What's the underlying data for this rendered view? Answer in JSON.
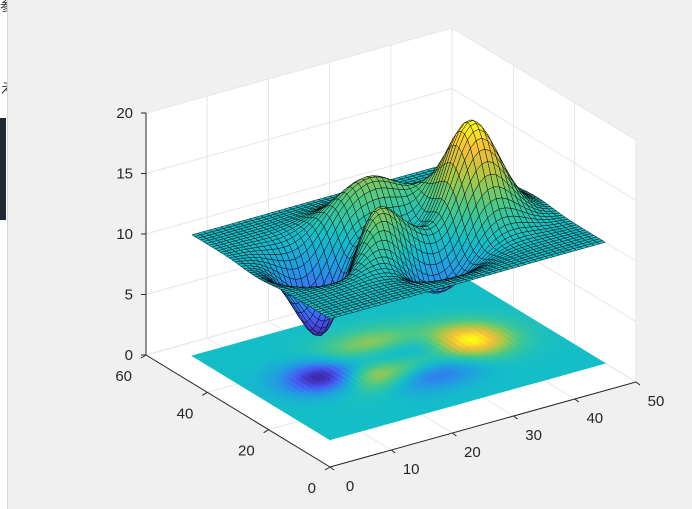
{
  "window": {
    "edge_glyph_top": "参",
    "edge_glyph_mid": "え"
  },
  "colors": {
    "background": "#f0f0f0",
    "axes_face": "#ffffff",
    "grid": "#e6e6e6",
    "axis_line": "#262626",
    "mesh_line": "#000000",
    "colormap": "parula"
  },
  "chart_data": {
    "type": "surface",
    "title": "",
    "xlabel": "",
    "ylabel": "",
    "zlabel": "",
    "colormap": "parula",
    "grid": true,
    "description_function": "peaks",
    "grid_size": [
      49,
      49
    ],
    "x_range": [
      0,
      50
    ],
    "y_range": [
      0,
      60
    ],
    "z_range": [
      0,
      20
    ],
    "surface_z_min": 3.4,
    "surface_z_max": 18.0,
    "base_level": 10,
    "contour_plane_z": 0,
    "xticks": [
      0,
      10,
      20,
      30,
      40,
      50
    ],
    "yticks": [
      0,
      20,
      40,
      60
    ],
    "zticks": [
      0,
      5,
      10,
      15,
      20
    ],
    "xtick_labels": [
      "0",
      "10",
      "20",
      "30",
      "40",
      "50"
    ],
    "ytick_labels": [
      "0",
      "20",
      "40",
      "60"
    ],
    "ztick_labels": [
      "0",
      "5",
      "10",
      "15",
      "20"
    ],
    "view": "default 3-D"
  }
}
